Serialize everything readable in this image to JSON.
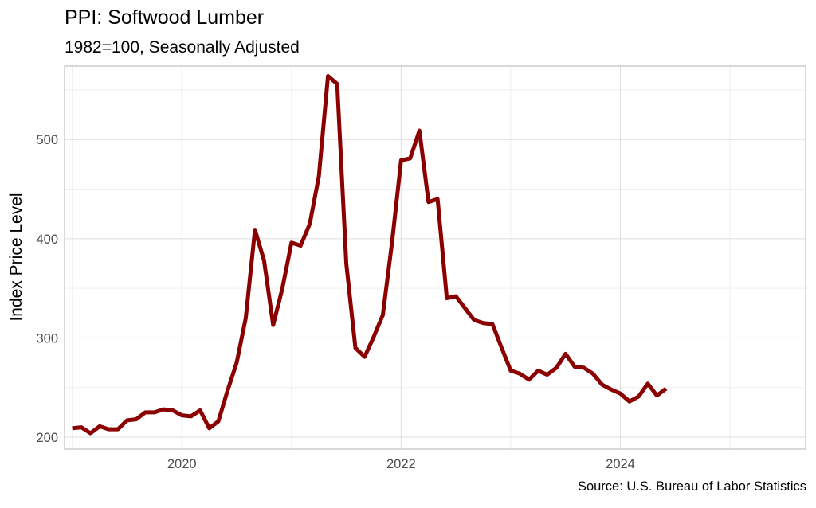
{
  "chart_data": {
    "type": "line",
    "title": "PPI: Softwood Lumber",
    "subtitle": "1982=100, Seasonally Adjusted",
    "ylabel": "Index Price Level",
    "xlabel": "",
    "caption": "Source: U.S. Bureau of Labor Statistics",
    "x_unit": "year",
    "xlim": [
      2018.93,
      2025.69
    ],
    "ylim": [
      188,
      574
    ],
    "x_major_ticks": [
      2020,
      2022,
      2024
    ],
    "x_tick_labels": [
      "2020",
      "2022",
      "2024"
    ],
    "x_minor_ticks": [
      2019,
      2021,
      2023,
      2025
    ],
    "y_major_ticks": [
      200,
      300,
      400,
      500
    ],
    "y_tick_labels": [
      "200",
      "300",
      "400",
      "500"
    ],
    "y_minor_ticks": [
      250,
      350,
      450,
      550
    ],
    "grid": true,
    "legend": "none",
    "colors": {
      "line": "#8b0000",
      "grid_major": "#dedede",
      "grid_minor": "#efefef",
      "panel_border": "#b3b3b3",
      "axis_text": "#4d4d4d"
    },
    "series": [
      {
        "x": [
          2019.0,
          2019.083,
          2019.167,
          2019.25,
          2019.333,
          2019.417,
          2019.5,
          2019.583,
          2019.667,
          2019.75,
          2019.833,
          2019.917,
          2020.0,
          2020.083,
          2020.167,
          2020.25,
          2020.333,
          2020.417,
          2020.5,
          2020.583,
          2020.667,
          2020.75,
          2020.833,
          2020.917,
          2021.0,
          2021.083,
          2021.167,
          2021.25,
          2021.333,
          2021.417,
          2021.5,
          2021.583,
          2021.667,
          2021.75,
          2021.833,
          2021.917,
          2022.0,
          2022.083,
          2022.167,
          2022.25,
          2022.333,
          2022.417,
          2022.5,
          2022.583,
          2022.667,
          2022.75,
          2022.833,
          2022.917,
          2023.0,
          2023.083,
          2023.167,
          2023.25,
          2023.333,
          2023.417,
          2023.5,
          2023.583,
          2023.667,
          2023.75,
          2023.833,
          2023.917,
          2024.0,
          2024.083,
          2024.167,
          2024.25,
          2024.333,
          2024.417
        ],
        "values": [
          209,
          210,
          204,
          211,
          208,
          208,
          217,
          218,
          225,
          225,
          228,
          227,
          222,
          221,
          227,
          209,
          216,
          247,
          275,
          320,
          409,
          378,
          313,
          350,
          396,
          393,
          415,
          463,
          564,
          556,
          375,
          290,
          281,
          301,
          323,
          396,
          479,
          481,
          509,
          437,
          440,
          340,
          342,
          330,
          318,
          315,
          314,
          290,
          267,
          264,
          258,
          267,
          263,
          270,
          284,
          271,
          270,
          264,
          253,
          248,
          244,
          236,
          241,
          254,
          242,
          249
        ]
      }
    ]
  }
}
